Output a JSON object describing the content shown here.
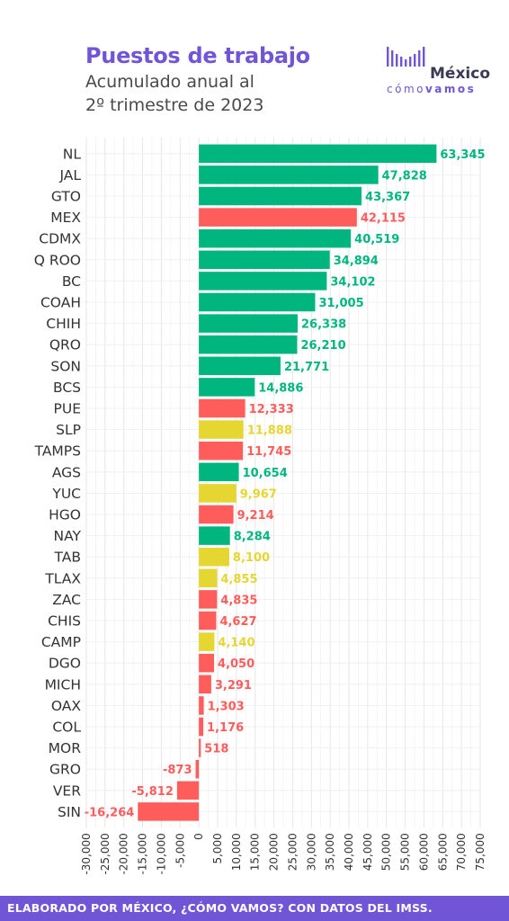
{
  "header": {
    "title": "Puestos de trabajo",
    "subtitle_line1": "Acumulado anual al",
    "subtitle_line2": "2º trimestre de 2023"
  },
  "logo": {
    "word": "México",
    "sub_light": "cómo",
    "sub_bold": "vamos"
  },
  "footer": {
    "text": "ELABORADO POR MÉXICO, ¿CÓMO VAMOS? CON DATOS DEL IMSS."
  },
  "colors": {
    "green": "#00b67e",
    "red": "#ff5c5c",
    "yellow": "#e5d632",
    "accent": "#7056d6"
  },
  "chart_data": {
    "type": "bar",
    "orientation": "horizontal",
    "title": "Puestos de trabajo",
    "xlabel": "",
    "ylabel": "",
    "xlim": [
      -30000,
      75000
    ],
    "grid": true,
    "legend": "none",
    "x_ticks": [
      "-30,000",
      "-25,000",
      "-20,000",
      "-15,000",
      "-10,000",
      "-5,000",
      "0",
      "5,000",
      "10,000",
      "15,000",
      "20,000",
      "25,000",
      "30,000",
      "35,000",
      "40,000",
      "45,000",
      "50,000",
      "55,000",
      "60,000",
      "65,000",
      "70,000",
      "75,000"
    ],
    "categories": [
      "NL",
      "JAL",
      "GTO",
      "MEX",
      "CDMX",
      "Q ROO",
      "BC",
      "COAH",
      "CHIH",
      "QRO",
      "SON",
      "BCS",
      "PUE",
      "SLP",
      "TAMPS",
      "AGS",
      "YUC",
      "HGO",
      "NAY",
      "TAB",
      "TLAX",
      "ZAC",
      "CHIS",
      "CAMP",
      "DGO",
      "MICH",
      "OAX",
      "COL",
      "MOR",
      "GRO",
      "VER",
      "SIN"
    ],
    "values": [
      63345,
      47828,
      43367,
      42115,
      40519,
      34894,
      34102,
      31005,
      26338,
      26210,
      21771,
      14886,
      12333,
      11888,
      11745,
      10654,
      9967,
      9214,
      8284,
      8100,
      4855,
      4835,
      4627,
      4140,
      4050,
      3291,
      1303,
      1176,
      518,
      -873,
      -5812,
      -16264
    ],
    "labels": [
      "63,345",
      "47,828",
      "43,367",
      "42,115",
      "40,519",
      "34,894",
      "34,102",
      "31,005",
      "26,338",
      "26,210",
      "21,771",
      "14,886",
      "12,333",
      "11,888",
      "11,745",
      "10,654",
      "9,967",
      "9,214",
      "8,284",
      "8,100",
      "4,855",
      "4,835",
      "4,627",
      "4,140",
      "4,050",
      "3,291",
      "1,303",
      "1,176",
      "518",
      "-873",
      "-5,812",
      "-16,264"
    ],
    "bar_colors": [
      "green",
      "green",
      "green",
      "red",
      "green",
      "green",
      "green",
      "green",
      "green",
      "green",
      "green",
      "green",
      "red",
      "yellow",
      "red",
      "green",
      "yellow",
      "red",
      "green",
      "yellow",
      "yellow",
      "red",
      "red",
      "yellow",
      "red",
      "red",
      "red",
      "red",
      "red",
      "red",
      "red",
      "red"
    ]
  }
}
